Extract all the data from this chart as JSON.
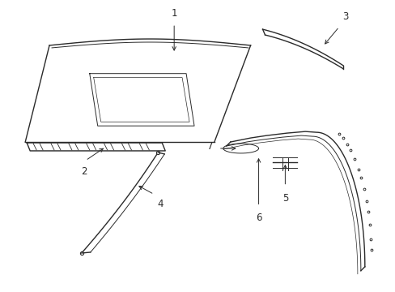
{
  "background_color": "#ffffff",
  "line_color": "#2a2a2a",
  "figsize": [
    4.89,
    3.6
  ],
  "dpi": 100,
  "label_fontsize": 8.5
}
